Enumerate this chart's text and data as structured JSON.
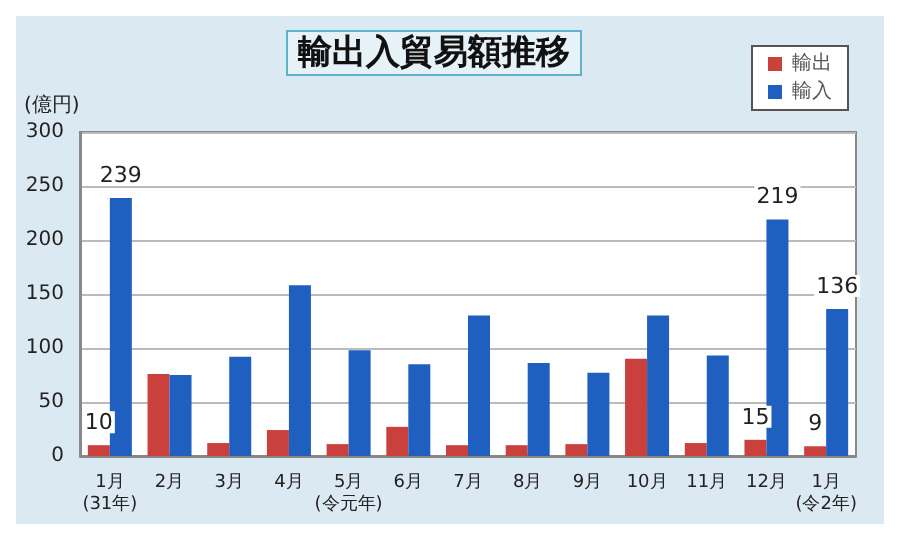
{
  "chart_data": {
    "type": "bar",
    "title": "輸出入貿易額推移",
    "ylabel": "(億円)",
    "categories": [
      "1月\n(31年)",
      "2月",
      "3月",
      "4月",
      "5月\n(令元年)",
      "6月",
      "7月",
      "8月",
      "9月",
      "10月",
      "11月",
      "12月",
      "1月\n(令2年)"
    ],
    "series": [
      {
        "name": "輸出",
        "color": "#c9403d",
        "values": [
          10,
          76,
          12,
          24,
          11,
          27,
          10,
          10,
          11,
          90,
          12,
          15,
          9
        ],
        "value_labels": [
          "10",
          null,
          null,
          null,
          null,
          null,
          null,
          null,
          null,
          null,
          null,
          "15",
          "9"
        ]
      },
      {
        "name": "輸入",
        "color": "#1f5fc0",
        "values": [
          239,
          75,
          92,
          158,
          98,
          85,
          130,
          86,
          77,
          130,
          93,
          219,
          136
        ],
        "value_labels": [
          "239",
          null,
          null,
          null,
          null,
          null,
          null,
          null,
          null,
          null,
          null,
          "219",
          "136"
        ]
      }
    ],
    "ylim": [
      0,
      300
    ],
    "yticks": [
      0,
      50,
      100,
      150,
      200,
      250,
      300
    ],
    "grid": "y",
    "legend": "top right"
  }
}
